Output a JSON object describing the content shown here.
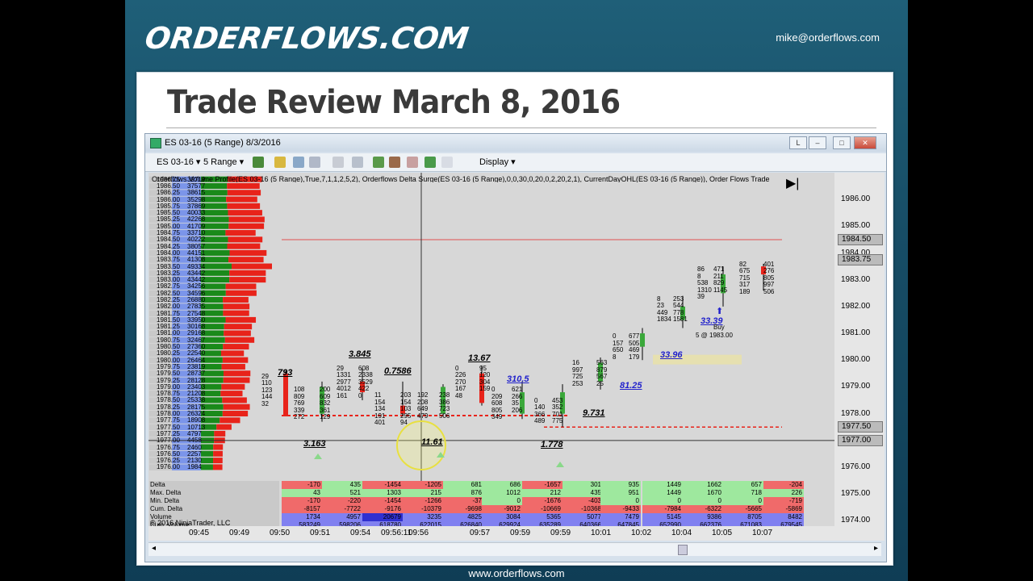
{
  "brand": {
    "logo": "ORDERFLOWS.COM",
    "email": "mike@orderflows.com",
    "footer_url": "www.orderflows.com"
  },
  "slide_title": "Trade Review March 8, 2016",
  "window": {
    "title": "ES 03-16 (5 Range)  8/3/2016",
    "buttons": [
      "L",
      "–",
      "□",
      "✕"
    ]
  },
  "toolbar": {
    "instrument": "ES 03-16",
    "interval": "5 Range",
    "display": "Display"
  },
  "chart": {
    "indicator_text": "Orderflows Volume Profile(ES 03-16 (5 Range),True,7,1,1,2,5,2),  Orderflows Delta Surge(ES 03-16 (5 Range),0,0,30,0,20,0,2,20,2,1), CurrentDayOHL(ES 03-16 (5 Range)),  Order Flows Trade",
    "copyright": "© 2016 NinjaTrader, LLC",
    "buy_label": "Buy",
    "buy_price": "5 @ 1983.00",
    "y_ticks": [
      "1986.00",
      "1985.00",
      "1984.00",
      "1983.00",
      "1982.00",
      "1981.00",
      "1980.00",
      "1979.00",
      "1978.00",
      "1977.00",
      "1976.00",
      "1975.00",
      "1974.00"
    ],
    "y_markers": [
      "1984.50",
      "1983.75",
      "1977.50",
      "1977.00"
    ],
    "x_ticks": [
      "09:45",
      "09:49",
      "09:50",
      "09:51",
      "09:54",
      "09:56:11",
      "09:56",
      "09:57",
      "09:59",
      "09:59",
      "10:01",
      "10:02",
      "10:04",
      "10:05",
      "10:07"
    ],
    "bar_values": [
      "793",
      "3.163",
      "3.845",
      "0.7586",
      "11.61",
      "13.67",
      "310.5",
      "1.778",
      "9.731",
      "81.25",
      "33.96",
      "33.39"
    ],
    "profile_prices": [
      "1986.75",
      "1986.50",
      "1986.25",
      "1986.00",
      "1985.75",
      "1985.50",
      "1985.25",
      "1985.00",
      "1984.75",
      "1984.50",
      "1984.25",
      "1984.00",
      "1983.75",
      "1983.50",
      "1983.25",
      "1983.00",
      "1982.75",
      "1982.50",
      "1982.25",
      "1982.00",
      "1981.75",
      "1981.50",
      "1981.25",
      "1981.00",
      "1980.75",
      "1980.50",
      "1980.25",
      "1980.00",
      "1979.75",
      "1979.50",
      "1979.25",
      "1979.00",
      "1978.75",
      "1978.50",
      "1978.25",
      "1978.00",
      "1977.75",
      "1977.50",
      "1977.25",
      "1977.00",
      "1976.75",
      "1976.50",
      "1976.25",
      "1976.00"
    ],
    "profile_volumes": [
      "39719",
      "37577",
      "38615",
      "35298",
      "37869",
      "40033",
      "42268",
      "41709",
      "33710",
      "40222",
      "38057",
      "44151",
      "41308",
      "49334",
      "43442",
      "43442",
      "34256",
      "34596",
      "26880",
      "27835",
      "27548",
      "33950",
      "30168",
      "29168",
      "32467",
      "27360",
      "22540",
      "26464",
      "23819",
      "28737",
      "28128",
      "23403",
      "21208",
      "25338",
      "28175",
      "26324",
      "18908",
      "10713",
      "4797",
      "4458",
      "2460",
      "2257",
      "2130",
      "1984"
    ],
    "table": {
      "labels": [
        "Delta",
        "Max. Delta",
        "Min. Delta",
        "Cum. Delta",
        "Volume",
        "Cum. Volume"
      ],
      "rows": [
        [
          "-170",
          "435",
          "-1454",
          "-1205",
          "681",
          "686",
          "-1657",
          "301",
          "935",
          "1449",
          "1662",
          "657",
          "-204"
        ],
        [
          "43",
          "521",
          "1303",
          "215",
          "876",
          "1012",
          "212",
          "435",
          "951",
          "1449",
          "1670",
          "718",
          "226"
        ],
        [
          "-170",
          "-220",
          "-1454",
          "-1266",
          "-37",
          "0",
          "-1676",
          "-403",
          "0",
          "0",
          "0",
          "0",
          "-719"
        ],
        [
          "-8157",
          "-7722",
          "-9176",
          "-10379",
          "-9698",
          "-9012",
          "-10669",
          "-10368",
          "-9433",
          "-7984",
          "-6322",
          "-5665",
          "-5869"
        ],
        [
          "1734",
          "4957",
          "20679",
          "3235",
          "4825",
          "3084",
          "5365",
          "5077",
          "7479",
          "5145",
          "9386",
          "8705",
          "8482"
        ],
        [
          "583249",
          "598206",
          "618780",
          "622015",
          "626840",
          "629924",
          "635289",
          "640366",
          "647845",
          "652990",
          "662376",
          "671083",
          "679545"
        ]
      ]
    }
  },
  "colors": {
    "bg": "#d7d7d7",
    "up": "#3aa83a",
    "down": "#e8231a",
    "profile_blue": "#7b95ea",
    "profile_green": "#1a8a1a",
    "profile_red": "#e8231a"
  }
}
